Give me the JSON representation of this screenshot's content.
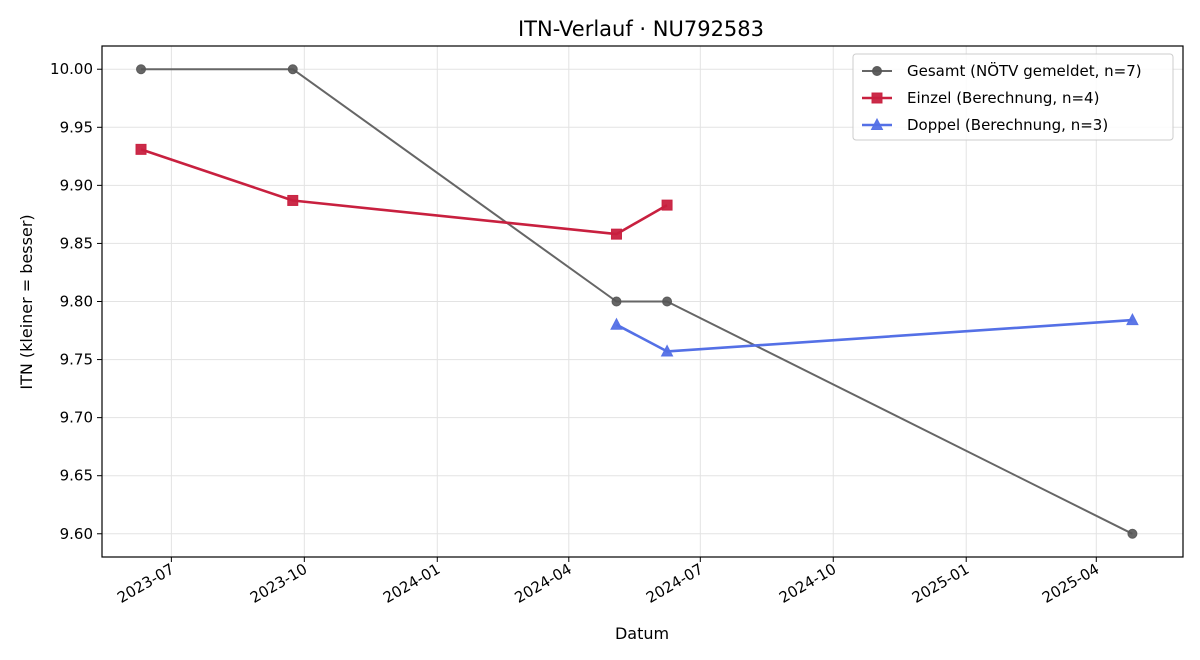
{
  "chart_data": {
    "type": "line",
    "title": "ITN-Verlauf · NU792583",
    "xlabel": "Datum",
    "ylabel": "ITN  (kleiner = besser)",
    "x_type": "date",
    "xlim": [
      "2023-05-14",
      "2025-05-31"
    ],
    "ylim": [
      9.58,
      10.02
    ],
    "x_ticks": [
      "2023-07-01",
      "2023-10-01",
      "2024-01-01",
      "2024-04-01",
      "2024-07-01",
      "2024-10-01",
      "2025-01-01",
      "2025-04-01"
    ],
    "x_tick_labels": [
      "2023-07",
      "2023-10",
      "2024-01",
      "2024-04",
      "2024-07",
      "2024-10",
      "2025-01",
      "2025-04"
    ],
    "y_ticks": [
      9.6,
      9.65,
      9.7,
      9.75,
      9.8,
      9.85,
      9.9,
      9.95,
      10.0
    ],
    "y_tick_labels": [
      "9.60",
      "9.65",
      "9.70",
      "9.75",
      "9.80",
      "9.85",
      "9.90",
      "9.95",
      "10.00"
    ],
    "grid": true,
    "legend_position": "top-right",
    "series": [
      {
        "name": "Gesamt (NÖTV gemeldet, n=7)",
        "color": "#666666",
        "marker": "circle",
        "points": [
          {
            "x": "2023-06-10",
            "y": 10.0
          },
          {
            "x": "2023-09-23",
            "y": 10.0
          },
          {
            "x": "2024-05-04",
            "y": 9.8
          },
          {
            "x": "2024-06-08",
            "y": 9.8
          },
          {
            "x": "2025-04-26",
            "y": 9.6
          }
        ]
      },
      {
        "name": "Einzel (Berechnung, n=4)",
        "color": "#c8203f",
        "marker": "square",
        "points": [
          {
            "x": "2023-06-10",
            "y": 9.931
          },
          {
            "x": "2023-09-23",
            "y": 9.887
          },
          {
            "x": "2024-05-04",
            "y": 9.858
          },
          {
            "x": "2024-06-08",
            "y": 9.883
          }
        ]
      },
      {
        "name": "Doppel (Berechnung, n=3)",
        "color": "#5470e6",
        "marker": "triangle",
        "points": [
          {
            "x": "2024-05-04",
            "y": 9.78
          },
          {
            "x": "2024-06-08",
            "y": 9.757
          },
          {
            "x": "2025-04-26",
            "y": 9.784
          }
        ]
      }
    ]
  }
}
